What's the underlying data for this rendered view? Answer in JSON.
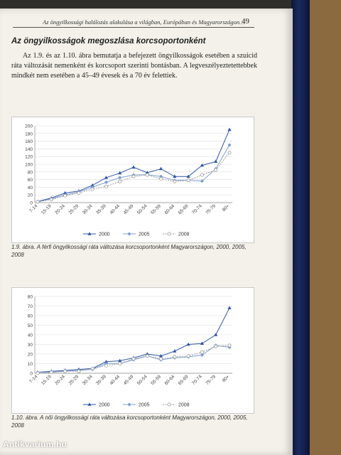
{
  "page": {
    "running_head": "Az öngyilkossági halálozás alakulása a világban, Európában és Magyarországon…",
    "page_number": "49",
    "section_title": "Az öngyilkosságok megoszlása korcsoportonként",
    "paragraph": "Az 1.9. és az 1.10. ábra bemutatja a befejezett öngyilkosságok esetében a szuicid ráta változását nemenként és korcsoport szerinti bontásban. A legveszélyeztetettebbek mindkét nem esetében a 45–49 évesek és a 70 év felettiek.",
    "caption1": "1.9. ábra. A férfi öngyilkossági ráta változása korcsoportonként Magyarországon, 2000, 2005, 2008",
    "caption2": "1.10. ábra. A női öngyilkossági ráta változása korcsoportonként Magyarországon, 2000, 2005, 2008",
    "watermark": "Antikvarium.hu"
  },
  "colors": {
    "s2000": "#2f55a6",
    "s2005": "#7d9fd0",
    "s2008": "#9a9a9a"
  },
  "chart_data": [
    {
      "type": "line",
      "categories": [
        "7-14",
        "15-19",
        "20-24",
        "25-29",
        "30-34",
        "35-39",
        "40-44",
        "45-49",
        "50-54",
        "55-59",
        "60-64",
        "65-69",
        "70-74",
        "75-79",
        "80+"
      ],
      "ylim": [
        0,
        200
      ],
      "yticks": [
        0,
        20,
        40,
        60,
        80,
        100,
        120,
        140,
        160,
        180,
        200
      ],
      "legend_position": "bottom",
      "series": [
        {
          "name": "2000",
          "marker": "triangle",
          "values": [
            3,
            12,
            25,
            30,
            45,
            65,
            77,
            92,
            78,
            88,
            68,
            68,
            97,
            107,
            190
          ]
        },
        {
          "name": "2005",
          "marker": "diamond",
          "values": [
            2,
            10,
            20,
            28,
            40,
            53,
            65,
            72,
            73,
            68,
            58,
            58,
            56,
            88,
            150
          ]
        },
        {
          "name": "2008",
          "marker": "circle",
          "values": [
            2,
            8,
            18,
            25,
            35,
            42,
            55,
            68,
            72,
            62,
            55,
            58,
            72,
            85,
            130
          ]
        }
      ]
    },
    {
      "type": "line",
      "categories": [
        "7-14",
        "15-19",
        "20-24",
        "25-29",
        "30-34",
        "35-39",
        "40-44",
        "45-49",
        "50-54",
        "55-59",
        "60-64",
        "65-69",
        "70-74",
        "75-79",
        "80+"
      ],
      "ylim": [
        0,
        80
      ],
      "yticks": [
        0,
        10,
        20,
        30,
        40,
        50,
        60,
        70,
        80
      ],
      "legend_position": "bottom",
      "series": [
        {
          "name": "2000",
          "marker": "triangle",
          "values": [
            1,
            2,
            3,
            4,
            5,
            12,
            13,
            16,
            20,
            18,
            23,
            30,
            31,
            40,
            68
          ]
        },
        {
          "name": "2005",
          "marker": "diamond",
          "values": [
            1,
            1,
            2,
            3,
            4,
            10,
            10,
            14,
            18,
            14,
            16,
            17,
            19,
            29,
            27
          ]
        },
        {
          "name": "2008",
          "marker": "circle",
          "values": [
            0,
            1,
            2,
            2,
            5,
            8,
            10,
            15,
            18,
            15,
            17,
            18,
            22,
            28,
            29
          ]
        }
      ]
    }
  ]
}
